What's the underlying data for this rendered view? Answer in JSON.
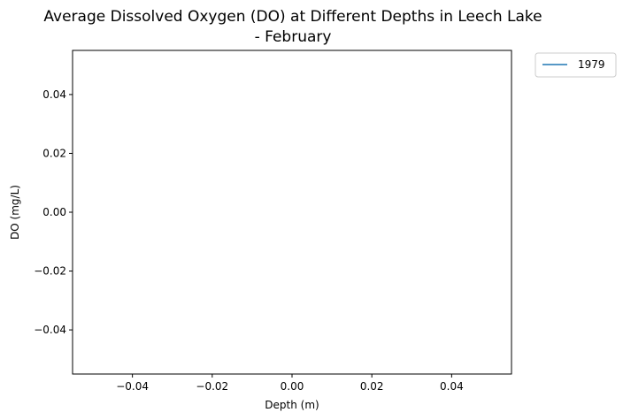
{
  "chart_data": {
    "type": "line",
    "title_lines": [
      "Average Dissolved Oxygen (DO) at Different Depths in Leech Lake",
      "- February"
    ],
    "xlabel": "Depth (m)",
    "ylabel": "DO (mg/L)",
    "xlim": [
      -0.055,
      0.055
    ],
    "ylim": [
      -0.055,
      0.055
    ],
    "x_ticks": [
      -0.04,
      -0.02,
      0.0,
      0.02,
      0.04
    ],
    "x_tick_labels": [
      "−0.04",
      "−0.02",
      "0.00",
      "0.02",
      "0.04"
    ],
    "y_ticks": [
      0.04,
      0.02,
      0.0,
      -0.02,
      -0.04
    ],
    "y_tick_labels": [
      "0.04",
      "0.02",
      "0.00",
      "−0.02",
      "−0.04"
    ],
    "grid": false,
    "legend_position": "outside-top-right",
    "series": [
      {
        "name": "1979",
        "color": "#1f77b4",
        "x": [],
        "y": []
      }
    ]
  }
}
